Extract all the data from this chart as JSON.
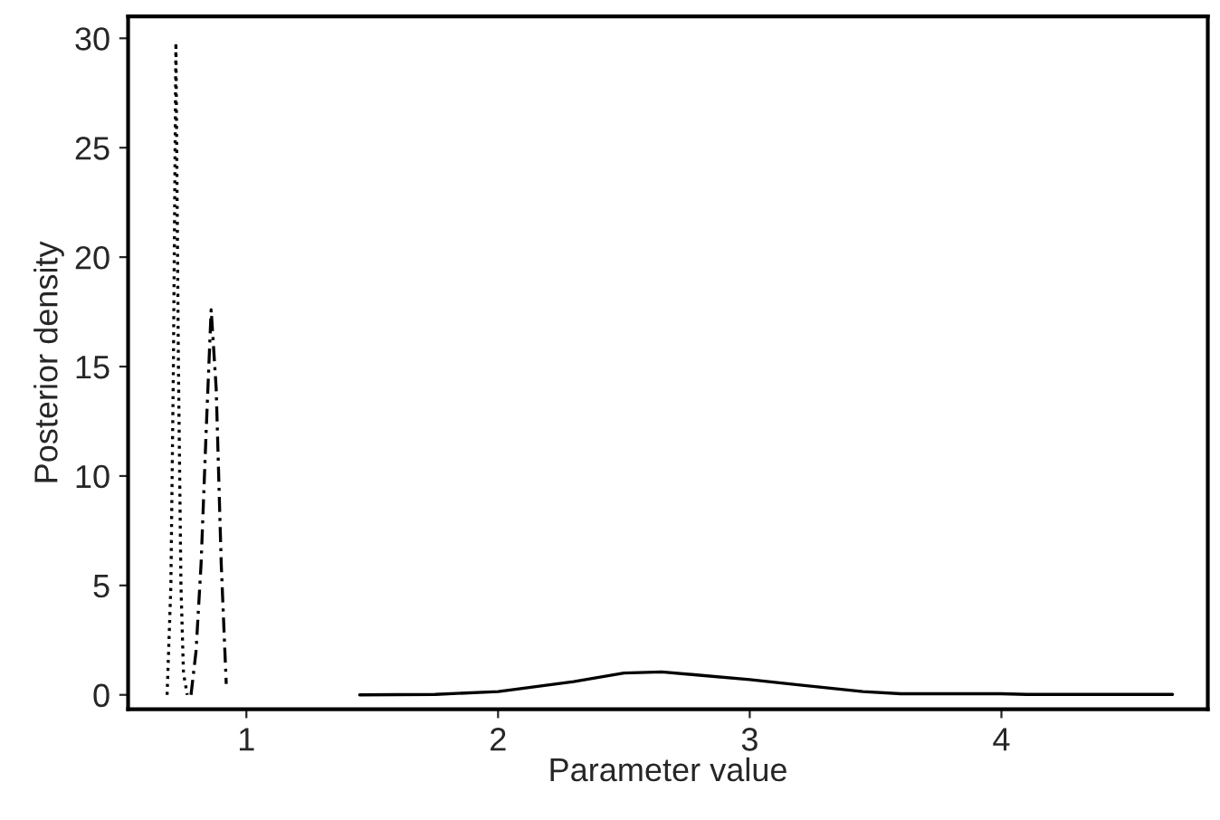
{
  "chart_data": {
    "type": "line",
    "xlabel": "Parameter value",
    "ylabel": "Posterior density",
    "xlim": [
      0.53,
      4.82
    ],
    "ylim": [
      -0.66,
      31.0
    ],
    "xticks": [
      1,
      2,
      3,
      4
    ],
    "yticks": [
      0,
      5,
      10,
      15,
      20,
      25,
      30
    ],
    "grid": false,
    "legend": false,
    "marker": "none",
    "series": [
      {
        "color": "#000000",
        "line_style": "dotted",
        "x": [
          0.685,
          0.7,
          0.71,
          0.72,
          0.73,
          0.74,
          0.75,
          0.765
        ],
        "values": [
          0,
          5,
          15,
          29.8,
          15,
          5,
          1,
          0
        ]
      },
      {
        "color": "#000000",
        "line_style": "dashed",
        "x": [
          0.78,
          0.8,
          0.82,
          0.84,
          0.86,
          0.88,
          0.9,
          0.92
        ],
        "values": [
          0,
          2,
          6,
          12,
          17.6,
          14,
          6,
          0.5
        ]
      },
      {
        "color": "#000000",
        "line_style": "solid",
        "x": [
          1.45,
          1.75,
          2.0,
          2.3,
          2.5,
          2.65,
          2.8,
          3.0,
          3.2,
          3.45,
          3.6,
          4.0,
          4.1,
          4.68
        ],
        "values": [
          0,
          0.02,
          0.15,
          0.6,
          1.0,
          1.05,
          0.9,
          0.7,
          0.45,
          0.15,
          0.05,
          0.05,
          0.02,
          0.02
        ]
      }
    ]
  }
}
